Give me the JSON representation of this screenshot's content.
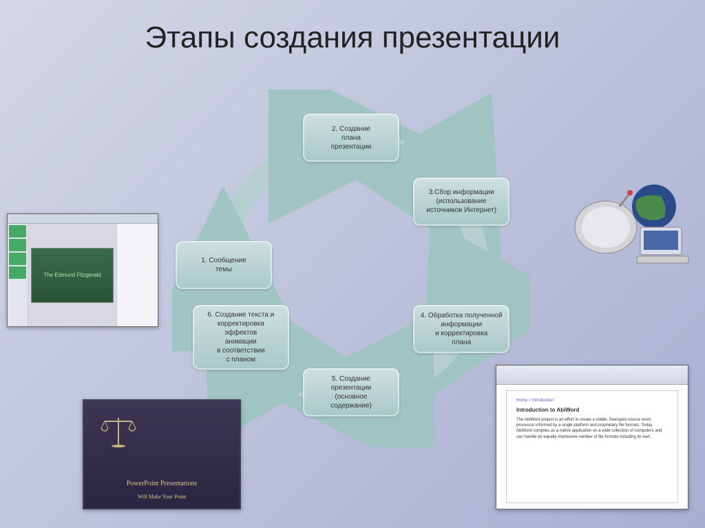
{
  "title": "Этапы создания презентации",
  "diagram": {
    "type": "cycle",
    "ring_color": "#b4cfcd",
    "arrow_color": "#9fc4c1",
    "node_fill_top": "#cde0df",
    "node_fill_bottom": "#a8c9c6",
    "node_text_color": "#333333",
    "node_fontsize": 10,
    "radius": 185,
    "nodes": [
      {
        "angle": -180,
        "label": "1. Сообщение\nтемы"
      },
      {
        "angle": -90,
        "label": "2. Создание\nплана\nпрезентации"
      },
      {
        "angle": -30,
        "label": "3.Сбор информации\n(использование\nисточников Интернет)"
      },
      {
        "angle": 30,
        "label": "4. Обработка полученной\nинформации\nи корректировка\nплана"
      },
      {
        "angle": 90,
        "label": "5. Создание\nпрезентации\n(основное\nсодержание)"
      },
      {
        "angle": 150,
        "label": "6. Создание текста и\nкорректировка\nэффектов\nанимации\nв соответствии\nс планом"
      }
    ]
  },
  "thumbs": {
    "ppt_editor": {
      "slide_text": "The Edmund Fitzgerald"
    },
    "dark_slide": {
      "line1": "PowerPoint Presentations",
      "line2": "Will Make Your Point"
    },
    "doc_editor": {
      "crumb": "Home > Introduction",
      "heading": "Introduction to AbiWord",
      "body": "The AbiWord project is an effort to create a stable, free/open-source word processor informed by a single platform and proprietary file formats. Today AbiWord complies as a native application on a wide collection of computers and can handle an equally impressive number of file formats including its own."
    }
  },
  "colors": {
    "bg_grad_start": "#d4d7e8",
    "bg_grad_end": "#a8aed0"
  }
}
